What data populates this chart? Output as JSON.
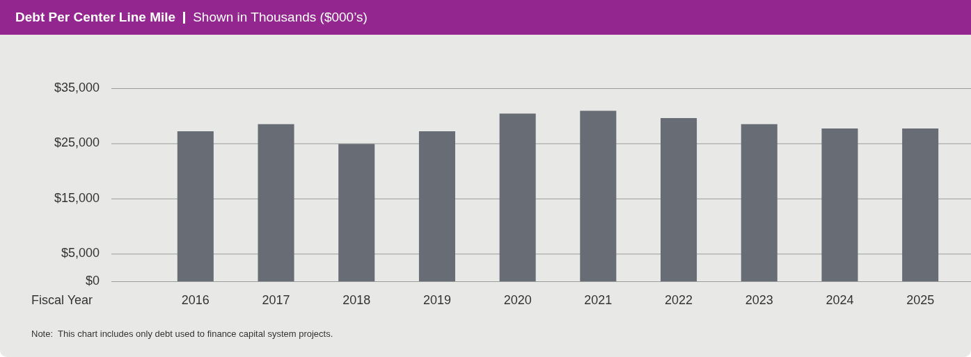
{
  "chart_data": {
    "type": "bar",
    "title": "Debt Per Center Line Mile",
    "subtitle": "Shown in Thousands ($000’s)",
    "xlabel": "Fiscal Year",
    "categories": [
      "2016",
      "2017",
      "2018",
      "2019",
      "2020",
      "2021",
      "2022",
      "2023",
      "2024",
      "2025"
    ],
    "values": [
      27200,
      28500,
      24900,
      27200,
      30400,
      30900,
      29600,
      28500,
      27700,
      27700
    ],
    "color": "#686c74",
    "ylim": [
      0,
      35000
    ],
    "yticks": [
      {
        "value": 0,
        "label": "$0"
      },
      {
        "value": 5000,
        "label": "$5,000"
      },
      {
        "value": 15000,
        "label": "$15,000"
      },
      {
        "value": 25000,
        "label": "$25,000"
      },
      {
        "value": 35000,
        "label": "$35,000"
      }
    ],
    "grid": true,
    "legend": false,
    "annotations": [
      "Note:  This chart includes only debt used to finance capital system projects."
    ]
  }
}
